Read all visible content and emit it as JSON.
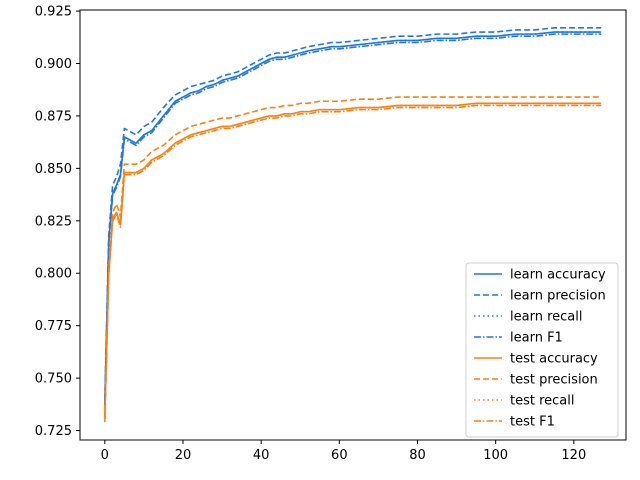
{
  "chart_data": {
    "type": "line",
    "title": "",
    "xlabel": "",
    "ylabel": "",
    "xlim": [
      -6.35,
      133.35
    ],
    "ylim": [
      0.7205,
      0.9255
    ],
    "grid": false,
    "legend_placement": "lower-right",
    "x_ticks": [
      0,
      20,
      40,
      60,
      80,
      100,
      120
    ],
    "x_tick_labels": [
      "0",
      "20",
      "40",
      "60",
      "80",
      "100",
      "120"
    ],
    "y_ticks": [
      0.725,
      0.75,
      0.775,
      0.8,
      0.825,
      0.85,
      0.875,
      0.9,
      0.925
    ],
    "y_tick_labels": [
      "0.725",
      "0.750",
      "0.775",
      "0.800",
      "0.825",
      "0.850",
      "0.875",
      "0.900",
      "0.925"
    ],
    "x": [
      0,
      1,
      2,
      3,
      4,
      5,
      8,
      10,
      12,
      15,
      18,
      20,
      22,
      24,
      26,
      28,
      30,
      32,
      34,
      36,
      38,
      40,
      42,
      44,
      46,
      48,
      50,
      52,
      55,
      58,
      60,
      65,
      70,
      75,
      80,
      85,
      90,
      95,
      100,
      105,
      110,
      115,
      120,
      125,
      127
    ],
    "series": [
      {
        "name": "learn accuracy",
        "color": "#1f77e4",
        "dash": "solid",
        "values": [
          0.738,
          0.815,
          0.838,
          0.842,
          0.847,
          0.865,
          0.862,
          0.866,
          0.868,
          0.875,
          0.882,
          0.884,
          0.886,
          0.887,
          0.889,
          0.89,
          0.892,
          0.893,
          0.894,
          0.896,
          0.898,
          0.9,
          0.902,
          0.903,
          0.903,
          0.904,
          0.905,
          0.906,
          0.907,
          0.908,
          0.908,
          0.909,
          0.91,
          0.911,
          0.911,
          0.912,
          0.912,
          0.913,
          0.913,
          0.914,
          0.914,
          0.915,
          0.915,
          0.915,
          0.915
        ]
      },
      {
        "name": "learn precision",
        "color": "#1f77e4",
        "dash": "6,3",
        "values": [
          0.74,
          0.818,
          0.842,
          0.846,
          0.852,
          0.869,
          0.866,
          0.87,
          0.872,
          0.879,
          0.885,
          0.887,
          0.889,
          0.89,
          0.891,
          0.892,
          0.894,
          0.895,
          0.896,
          0.898,
          0.9,
          0.902,
          0.904,
          0.905,
          0.905,
          0.906,
          0.907,
          0.908,
          0.909,
          0.91,
          0.91,
          0.911,
          0.912,
          0.913,
          0.913,
          0.914,
          0.914,
          0.915,
          0.915,
          0.916,
          0.916,
          0.917,
          0.917,
          0.917,
          0.917
        ]
      },
      {
        "name": "learn recall",
        "color": "#1f77e4",
        "dash": "1.5,3",
        "values": [
          0.738,
          0.815,
          0.838,
          0.842,
          0.847,
          0.865,
          0.862,
          0.866,
          0.868,
          0.875,
          0.882,
          0.884,
          0.886,
          0.887,
          0.889,
          0.89,
          0.892,
          0.893,
          0.894,
          0.896,
          0.898,
          0.9,
          0.902,
          0.903,
          0.903,
          0.904,
          0.905,
          0.906,
          0.907,
          0.908,
          0.908,
          0.909,
          0.91,
          0.911,
          0.911,
          0.912,
          0.912,
          0.913,
          0.913,
          0.914,
          0.914,
          0.915,
          0.915,
          0.915,
          0.915
        ]
      },
      {
        "name": "learn F1",
        "color": "#1f77e4",
        "dash": "7,2,1.5,2",
        "values": [
          0.737,
          0.814,
          0.837,
          0.841,
          0.846,
          0.864,
          0.861,
          0.865,
          0.867,
          0.874,
          0.881,
          0.883,
          0.885,
          0.886,
          0.888,
          0.889,
          0.891,
          0.892,
          0.893,
          0.895,
          0.897,
          0.899,
          0.901,
          0.902,
          0.902,
          0.903,
          0.904,
          0.905,
          0.906,
          0.907,
          0.907,
          0.908,
          0.909,
          0.91,
          0.91,
          0.911,
          0.911,
          0.912,
          0.912,
          0.913,
          0.913,
          0.914,
          0.914,
          0.914,
          0.914
        ]
      },
      {
        "name": "test accuracy",
        "color": "#ff7f0e",
        "dash": "solid",
        "values": [
          0.732,
          0.8,
          0.826,
          0.829,
          0.823,
          0.848,
          0.848,
          0.85,
          0.854,
          0.857,
          0.862,
          0.864,
          0.866,
          0.867,
          0.868,
          0.869,
          0.87,
          0.87,
          0.871,
          0.872,
          0.873,
          0.874,
          0.875,
          0.875,
          0.876,
          0.876,
          0.877,
          0.877,
          0.878,
          0.878,
          0.878,
          0.879,
          0.879,
          0.88,
          0.88,
          0.88,
          0.88,
          0.881,
          0.881,
          0.881,
          0.881,
          0.881,
          0.881,
          0.881,
          0.881
        ]
      },
      {
        "name": "test precision",
        "color": "#ff7f0e",
        "dash": "6,3",
        "values": [
          0.731,
          0.803,
          0.829,
          0.833,
          0.827,
          0.852,
          0.852,
          0.854,
          0.858,
          0.861,
          0.866,
          0.868,
          0.87,
          0.871,
          0.872,
          0.873,
          0.874,
          0.874,
          0.875,
          0.876,
          0.877,
          0.878,
          0.879,
          0.879,
          0.88,
          0.88,
          0.881,
          0.881,
          0.882,
          0.882,
          0.882,
          0.883,
          0.883,
          0.884,
          0.884,
          0.884,
          0.884,
          0.884,
          0.884,
          0.884,
          0.884,
          0.884,
          0.884,
          0.884,
          0.884
        ]
      },
      {
        "name": "test recall",
        "color": "#ff7f0e",
        "dash": "1.5,3",
        "values": [
          0.732,
          0.8,
          0.826,
          0.829,
          0.823,
          0.848,
          0.848,
          0.85,
          0.854,
          0.857,
          0.862,
          0.864,
          0.866,
          0.867,
          0.868,
          0.869,
          0.87,
          0.87,
          0.871,
          0.872,
          0.873,
          0.874,
          0.875,
          0.875,
          0.876,
          0.876,
          0.877,
          0.877,
          0.878,
          0.878,
          0.878,
          0.879,
          0.879,
          0.88,
          0.88,
          0.88,
          0.88,
          0.881,
          0.881,
          0.881,
          0.881,
          0.881,
          0.881,
          0.881,
          0.881
        ]
      },
      {
        "name": "test F1",
        "color": "#ff7f0e",
        "dash": "7,2,1.5,2",
        "values": [
          0.729,
          0.799,
          0.825,
          0.828,
          0.822,
          0.847,
          0.847,
          0.849,
          0.853,
          0.856,
          0.861,
          0.863,
          0.865,
          0.866,
          0.867,
          0.868,
          0.869,
          0.869,
          0.87,
          0.871,
          0.872,
          0.873,
          0.874,
          0.874,
          0.875,
          0.875,
          0.876,
          0.876,
          0.877,
          0.877,
          0.877,
          0.878,
          0.878,
          0.879,
          0.879,
          0.879,
          0.879,
          0.88,
          0.88,
          0.88,
          0.88,
          0.88,
          0.88,
          0.88,
          0.88
        ]
      }
    ]
  }
}
